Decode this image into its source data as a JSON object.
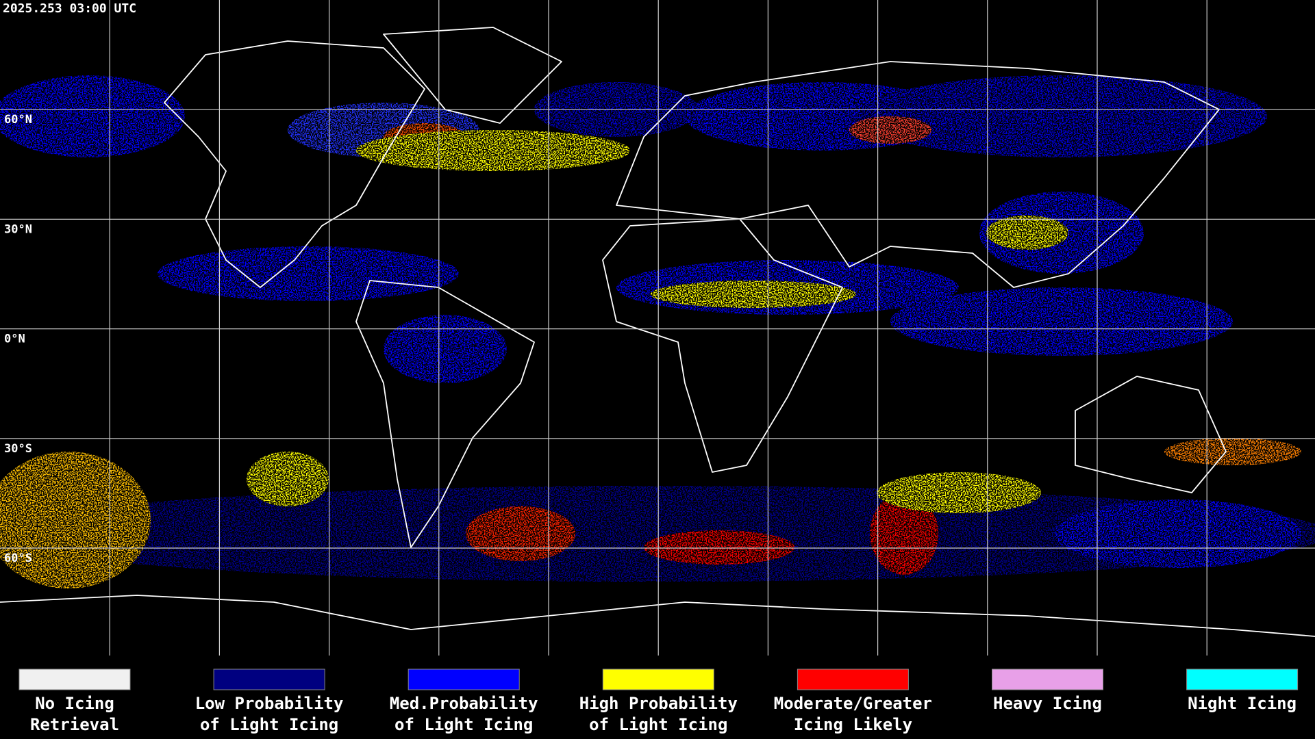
{
  "timestamp": "2025.253 03:00 UTC",
  "map": {
    "latitude_labels": [
      "60°N",
      "30°N",
      "0°N",
      "30°S",
      "60°S"
    ]
  },
  "legend": [
    {
      "label_lines": [
        "No Icing",
        "Retrieval"
      ],
      "color": "#f0f0f0"
    },
    {
      "label_lines": [
        "Low Probability",
        "of Light Icing"
      ],
      "color": "#000080"
    },
    {
      "label_lines": [
        "Med.Probability",
        "of Light Icing"
      ],
      "color": "#0000ff"
    },
    {
      "label_lines": [
        "High Probability",
        "of Light Icing"
      ],
      "color": "#ffff00"
    },
    {
      "label_lines": [
        "Moderate/Greater",
        "Icing Likely"
      ],
      "color": "#ff0000"
    },
    {
      "label_lines": [
        "Heavy Icing"
      ],
      "color": "#e8a0e8"
    },
    {
      "label_lines": [
        "Night Icing"
      ],
      "color": "#00ffff"
    }
  ]
}
